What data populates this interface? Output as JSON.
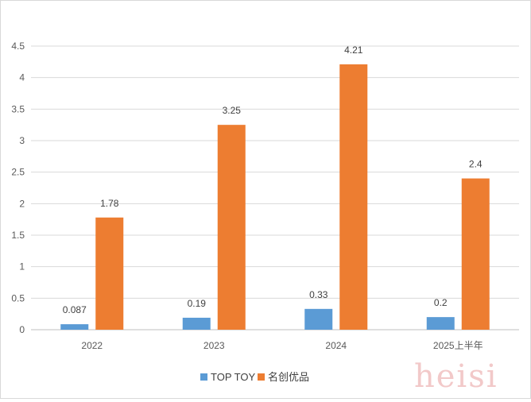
{
  "chart_data": {
    "type": "bar",
    "title": "",
    "xlabel": "",
    "ylabel": "",
    "categories": [
      "2022",
      "2023",
      "2024",
      "2025上半年"
    ],
    "series": [
      {
        "name": "TOP TOY",
        "values": [
          0.087,
          0.19,
          0.33,
          0.2
        ],
        "labels": [
          "0.087",
          "0.19",
          "0.33",
          "0.2"
        ],
        "color": "#5B9BD5"
      },
      {
        "name": "名创优品",
        "values": [
          1.78,
          3.25,
          4.21,
          2.4
        ],
        "labels": [
          "1.78",
          "3.25",
          "4.21",
          "2.4"
        ],
        "color": "#ED7D31"
      }
    ],
    "ylim": [
      0,
      4.5
    ],
    "yticks": [
      "0",
      "0.5",
      "1",
      "1.5",
      "2",
      "2.5",
      "3",
      "3.5",
      "4",
      "4.5"
    ],
    "grid": true,
    "legend": "bottom-center"
  },
  "watermark": "heisi",
  "colors": {
    "grid": "#d9d9d9",
    "axis": "#bfbfbf"
  }
}
